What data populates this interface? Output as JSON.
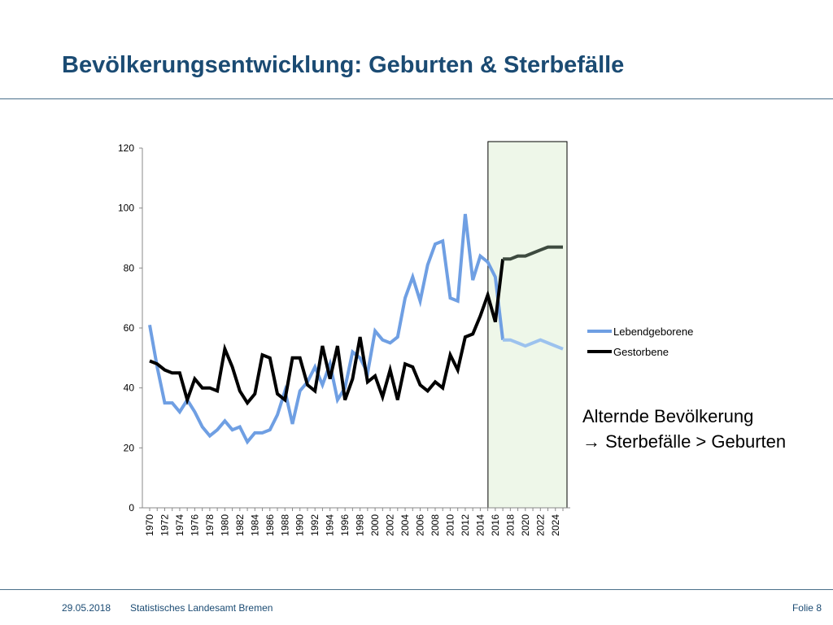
{
  "slide": {
    "title": "Bevölkerungsentwicklung: Geburten & Sterbefälle",
    "annotation_line1": "Alternde Bevölkerung",
    "annotation_line2": "Sterbefälle > Geburten",
    "annotation_arrow": "→",
    "footer_date": "29.05.2018",
    "footer_source": "Statistisches Landesamt Bremen",
    "footer_page": "Folie 8"
  },
  "colors": {
    "title": "#1b4b73",
    "lebendgeborene": "#6f9fe3",
    "lebendgeborene_forecast": "#9cc2ee",
    "gestorbene": "#000000",
    "gestorbene_forecast": "#3d4a3f",
    "forecast_region": "#eef7e9"
  },
  "chart_data": {
    "type": "line",
    "title": "",
    "xlabel": "",
    "ylabel": "",
    "ylim": [
      0,
      120
    ],
    "yticks": [
      0,
      20,
      40,
      60,
      80,
      100,
      120
    ],
    "xticks": [
      "1970",
      "1972",
      "1974",
      "1976",
      "1978",
      "1980",
      "1982",
      "1984",
      "1986",
      "1988",
      "1990",
      "1992",
      "1994",
      "1996",
      "1998",
      "2000",
      "2002",
      "2004",
      "2006",
      "2008",
      "2010",
      "2012",
      "2014",
      "2016",
      "2018",
      "2020",
      "2022",
      "2024"
    ],
    "x_start": 1970,
    "x_end": 2025,
    "forecast_from": 2016,
    "legend_position": "right",
    "grid": false,
    "series": [
      {
        "name": "Lebendgeborene",
        "x": [
          1970,
          1971,
          1972,
          1973,
          1974,
          1975,
          1976,
          1977,
          1978,
          1979,
          1980,
          1981,
          1982,
          1983,
          1984,
          1985,
          1986,
          1987,
          1988,
          1989,
          1990,
          1991,
          1992,
          1993,
          1994,
          1995,
          1996,
          1997,
          1998,
          1999,
          2000,
          2001,
          2002,
          2003,
          2004,
          2005,
          2006,
          2007,
          2008,
          2009,
          2010,
          2011,
          2012,
          2013,
          2014,
          2015,
          2016,
          2017,
          2018,
          2019,
          2020,
          2021,
          2022,
          2023,
          2024,
          2025
        ],
        "values": [
          61,
          47,
          35,
          35,
          32,
          36,
          32,
          27,
          24,
          26,
          29,
          26,
          27,
          22,
          25,
          25,
          26,
          31,
          39,
          28,
          39,
          42,
          47,
          41,
          48,
          36,
          40,
          52,
          50,
          45,
          59,
          56,
          55,
          57,
          70,
          77,
          69,
          81,
          88,
          89,
          70,
          69,
          98,
          76,
          84,
          82,
          77,
          56,
          56,
          55,
          54,
          55,
          56,
          55,
          54,
          53
        ]
      },
      {
        "name": "Gestorbene",
        "x": [
          1970,
          1971,
          1972,
          1973,
          1974,
          1975,
          1976,
          1977,
          1978,
          1979,
          1980,
          1981,
          1982,
          1983,
          1984,
          1985,
          1986,
          1987,
          1988,
          1989,
          1990,
          1991,
          1992,
          1993,
          1994,
          1995,
          1996,
          1997,
          1998,
          1999,
          2000,
          2001,
          2002,
          2003,
          2004,
          2005,
          2006,
          2007,
          2008,
          2009,
          2010,
          2011,
          2012,
          2013,
          2014,
          2015,
          2016,
          2017,
          2018,
          2019,
          2020,
          2021,
          2022,
          2023,
          2024,
          2025
        ],
        "values": [
          49,
          48,
          46,
          45,
          45,
          36,
          43,
          40,
          40,
          39,
          53,
          47,
          39,
          35,
          38,
          51,
          50,
          38,
          36,
          50,
          50,
          41,
          39,
          54,
          43,
          54,
          36,
          43,
          57,
          42,
          44,
          37,
          46,
          36,
          48,
          47,
          41,
          39,
          42,
          40,
          51,
          46,
          57,
          58,
          64,
          71,
          62,
          83,
          83,
          84,
          84,
          85,
          86,
          87,
          87,
          87
        ]
      }
    ]
  }
}
